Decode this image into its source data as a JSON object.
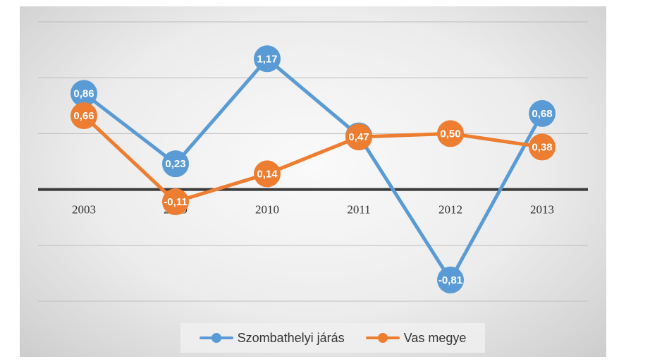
{
  "chart_data": {
    "type": "line",
    "categories": [
      "2003",
      "2009",
      "2010",
      "2011",
      "2012",
      "2013"
    ],
    "series": [
      {
        "name": "Szombathelyi járás",
        "color": "#5b9bd5",
        "values": [
          0.86,
          0.23,
          1.17,
          0.48,
          -0.81,
          0.68
        ],
        "labels": [
          "0,86",
          "0,23",
          "1,17",
          "0,48",
          "-0,81",
          "0,68"
        ]
      },
      {
        "name": "Vas megye",
        "color": "#ed7d31",
        "values": [
          0.66,
          -0.11,
          0.14,
          0.47,
          0.5,
          0.38
        ],
        "labels": [
          "0,66",
          "-0,11",
          "0,14",
          "0,47",
          "0,50",
          "0,38"
        ]
      }
    ],
    "ylim": [
      -1.0,
      1.5
    ],
    "grid": true,
    "legend_position": "bottom",
    "title": "",
    "xlabel": "",
    "ylabel": ""
  }
}
